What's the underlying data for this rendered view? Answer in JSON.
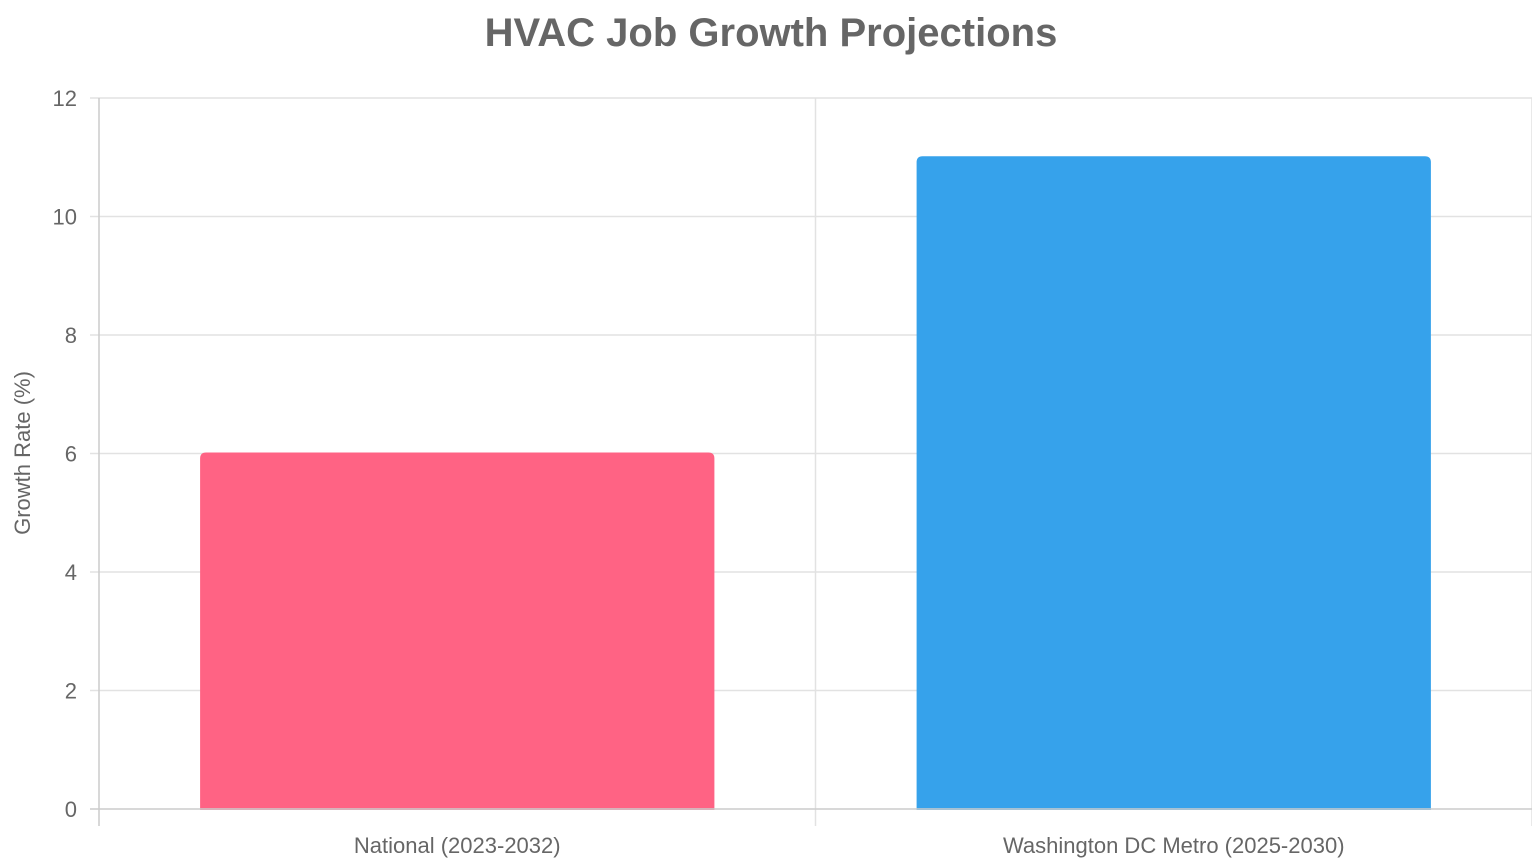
{
  "chart_data": {
    "type": "bar",
    "title": "HVAC Job Growth Projections",
    "xlabel": "",
    "ylabel": "Growth Rate (%)",
    "categories": [
      "National (2023-2032)",
      "Washington DC Metro (2025-2030)"
    ],
    "values": [
      6,
      11
    ],
    "ylim": [
      0,
      12
    ],
    "yticks": [
      "0",
      "2",
      "4",
      "6",
      "8",
      "10",
      "12"
    ],
    "grid": true,
    "legend": "none",
    "colors": {
      "bars": [
        "#ff6384",
        "#36a2eb"
      ],
      "title": "#666666",
      "text": "#666666",
      "grid": "#e2e2e2"
    }
  }
}
